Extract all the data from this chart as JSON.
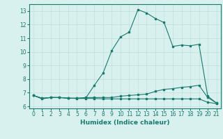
{
  "line1_x": [
    0,
    1,
    2,
    3,
    4,
    5,
    6,
    7,
    8,
    9,
    10,
    11,
    12,
    13,
    14,
    15,
    16,
    17,
    18,
    19,
    20,
    21
  ],
  "line1_y": [
    6.8,
    6.55,
    6.65,
    6.65,
    6.6,
    6.6,
    6.6,
    7.55,
    8.45,
    10.1,
    11.1,
    11.45,
    13.1,
    12.85,
    12.45,
    12.15,
    10.4,
    10.5,
    10.45,
    10.55,
    6.75,
    6.25
  ],
  "line2_x": [
    0,
    1,
    2,
    3,
    4,
    5,
    6,
    7,
    8,
    9,
    10,
    11,
    12,
    13,
    14,
    15,
    16,
    17,
    18,
    19,
    20,
    21
  ],
  "line2_y": [
    6.8,
    6.6,
    6.65,
    6.65,
    6.6,
    6.6,
    6.65,
    6.65,
    6.65,
    6.65,
    6.75,
    6.8,
    6.85,
    6.9,
    7.1,
    7.25,
    7.3,
    7.4,
    7.45,
    7.55,
    6.65,
    6.25
  ],
  "line3_x": [
    0,
    1,
    2,
    3,
    4,
    5,
    6,
    7,
    8,
    9,
    10,
    11,
    12,
    13,
    14,
    15,
    16,
    17,
    18,
    19,
    20,
    21
  ],
  "line3_y": [
    6.8,
    6.6,
    6.65,
    6.65,
    6.6,
    6.58,
    6.58,
    6.58,
    6.55,
    6.55,
    6.55,
    6.55,
    6.55,
    6.55,
    6.55,
    6.55,
    6.55,
    6.55,
    6.55,
    6.55,
    6.3,
    6.2
  ],
  "line_color": "#1a7a6e",
  "bg_color": "#d8f0ee",
  "grid_color": "#c0dedd",
  "xlabel": "Humidex (Indice chaleur)",
  "xlim": [
    -0.5,
    21.5
  ],
  "ylim": [
    5.85,
    13.5
  ],
  "yticks": [
    6,
    7,
    8,
    9,
    10,
    11,
    12,
    13
  ],
  "xticks": [
    0,
    1,
    2,
    3,
    4,
    5,
    6,
    7,
    8,
    9,
    10,
    11,
    12,
    13,
    14,
    15,
    16,
    17,
    18,
    19,
    20,
    21
  ]
}
